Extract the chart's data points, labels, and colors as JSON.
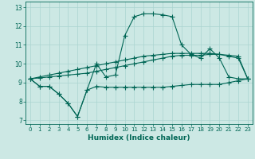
{
  "xlabel": "Humidex (Indice chaleur)",
  "background_color": "#cce8e4",
  "grid_color": "#aad4d0",
  "line_color": "#006655",
  "xlim": [
    -0.5,
    23.5
  ],
  "ylim": [
    6.8,
    13.3
  ],
  "xticks": [
    0,
    1,
    2,
    3,
    4,
    5,
    6,
    7,
    8,
    9,
    10,
    11,
    12,
    13,
    14,
    15,
    16,
    17,
    18,
    19,
    20,
    21,
    22,
    23
  ],
  "yticks": [
    7,
    8,
    9,
    10,
    11,
    12,
    13
  ],
  "series": [
    [
      9.2,
      8.8,
      8.8,
      8.4,
      7.9,
      7.2,
      8.6,
      10.0,
      9.3,
      9.4,
      11.5,
      12.5,
      12.65,
      12.65,
      12.6,
      12.5,
      11.0,
      10.5,
      10.3,
      10.8,
      10.3,
      9.3,
      9.2,
      9.2
    ],
    [
      9.2,
      8.8,
      8.8,
      8.4,
      7.9,
      7.2,
      8.6,
      8.8,
      8.75,
      8.75,
      8.75,
      8.75,
      8.75,
      8.75,
      8.75,
      8.8,
      8.85,
      8.9,
      8.9,
      8.9,
      8.9,
      9.0,
      9.1,
      9.2
    ],
    [
      9.2,
      9.25,
      9.3,
      9.35,
      9.4,
      9.45,
      9.5,
      9.6,
      9.7,
      9.8,
      9.9,
      10.0,
      10.1,
      10.2,
      10.3,
      10.4,
      10.45,
      10.45,
      10.45,
      10.5,
      10.5,
      10.45,
      10.4,
      9.2
    ],
    [
      9.2,
      9.3,
      9.4,
      9.5,
      9.6,
      9.7,
      9.8,
      9.9,
      10.0,
      10.1,
      10.2,
      10.3,
      10.4,
      10.45,
      10.5,
      10.55,
      10.55,
      10.55,
      10.55,
      10.55,
      10.5,
      10.4,
      10.3,
      9.2
    ]
  ],
  "marker": "+",
  "markersize": 4.0,
  "linewidth": 0.8
}
